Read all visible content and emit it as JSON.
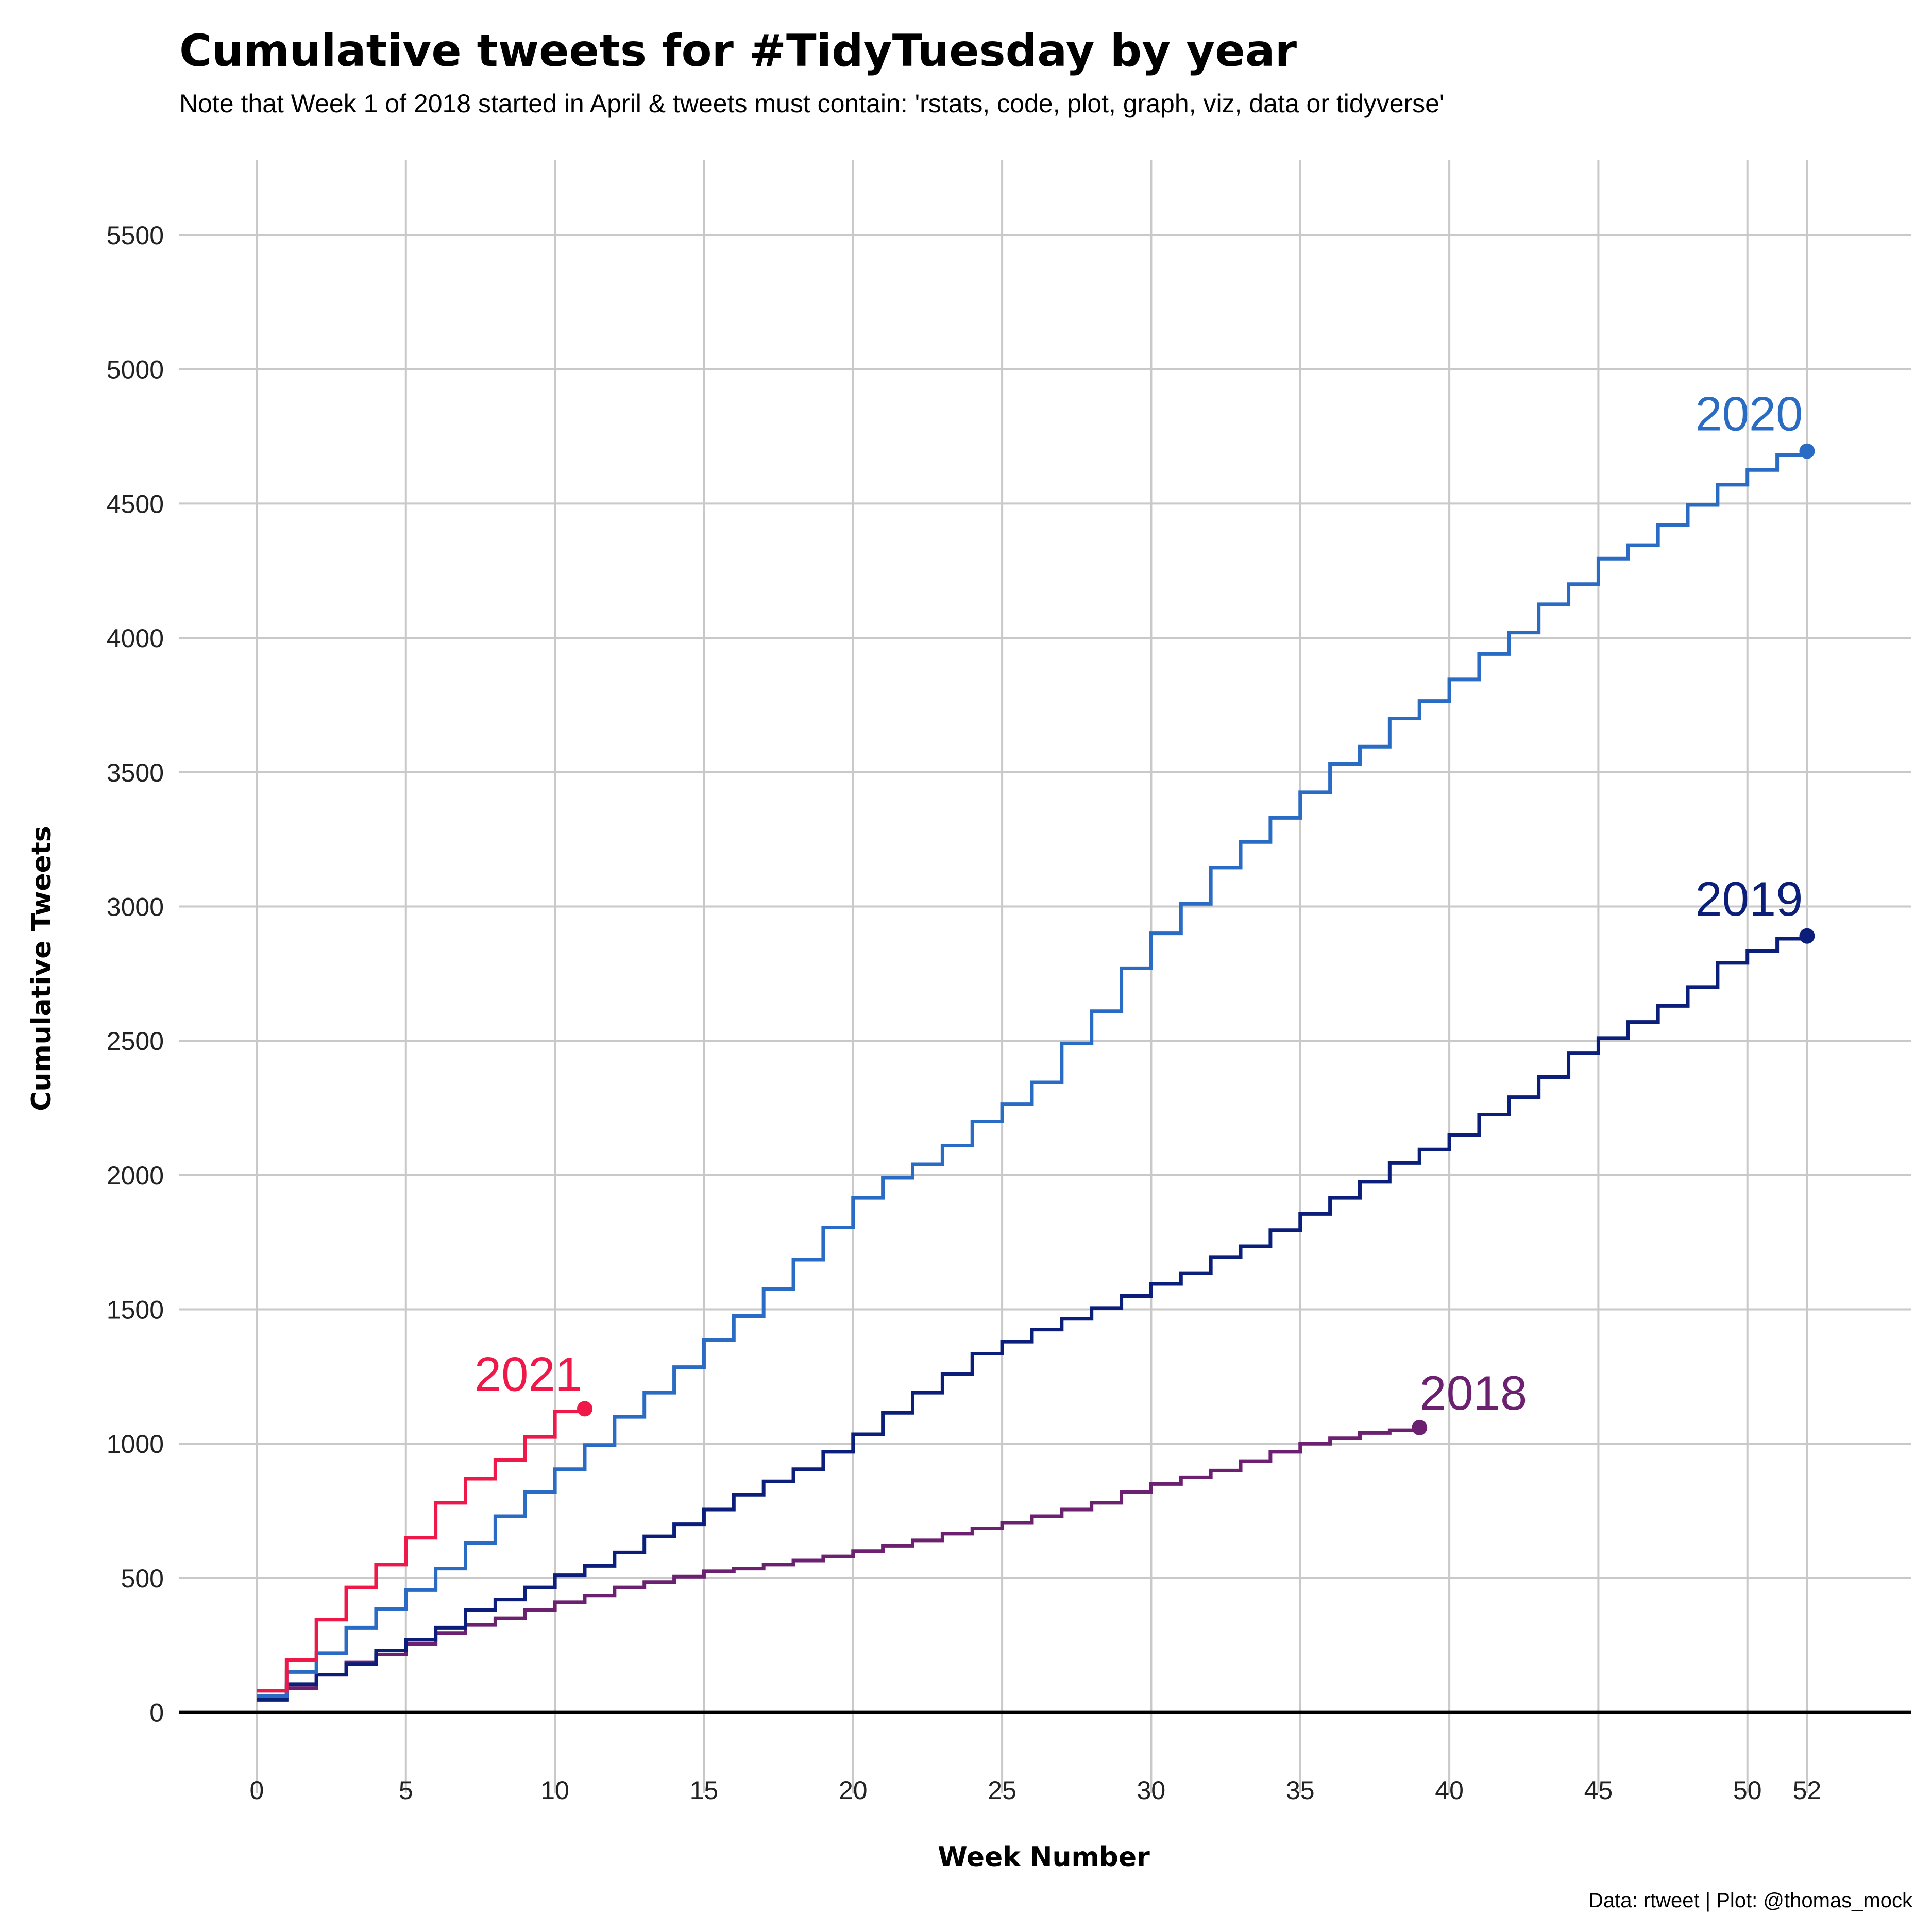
{
  "chart_data": {
    "type": "line",
    "step": true,
    "title": "Cumulative tweets for #TidyTuesday by year",
    "subtitle": "Note that Week 1 of 2018 started in April & tweets must contain: 'rstats, code, plot, graph, viz, data or tidyverse'",
    "xlabel": "Week Number",
    "ylabel": "Cumulative Tweets",
    "caption": "Data: rtweet | Plot: @thomas_mock",
    "xlim": [
      -2.6,
      55.5
    ],
    "ylim": [
      -300,
      5780
    ],
    "x_ticks": [
      0,
      5,
      10,
      15,
      20,
      25,
      30,
      35,
      40,
      45,
      50,
      52
    ],
    "y_ticks": [
      0,
      500,
      1000,
      1500,
      2000,
      2500,
      3000,
      3500,
      4000,
      4500,
      5000,
      5500
    ],
    "grid": true,
    "legend": "none (direct end labels)",
    "series": [
      {
        "name": "2018",
        "color": "#6b2170",
        "end_label": "2018",
        "x": [
          0,
          1,
          2,
          3,
          4,
          5,
          6,
          7,
          8,
          9,
          10,
          11,
          12,
          13,
          14,
          15,
          16,
          17,
          18,
          19,
          20,
          21,
          22,
          23,
          24,
          25,
          26,
          27,
          28,
          29,
          30,
          31,
          32,
          33,
          34,
          35,
          36,
          37,
          38,
          39
        ],
        "values": [
          45,
          90,
          140,
          185,
          215,
          255,
          295,
          325,
          350,
          380,
          410,
          435,
          465,
          485,
          505,
          525,
          535,
          550,
          565,
          580,
          600,
          620,
          640,
          665,
          685,
          705,
          730,
          755,
          780,
          820,
          850,
          875,
          900,
          935,
          970,
          1000,
          1020,
          1040,
          1050,
          1060
        ]
      },
      {
        "name": "2019",
        "color": "#0b1f7a",
        "end_label": "2019",
        "x": [
          0,
          1,
          2,
          3,
          4,
          5,
          6,
          7,
          8,
          9,
          10,
          11,
          12,
          13,
          14,
          15,
          16,
          17,
          18,
          19,
          20,
          21,
          22,
          23,
          24,
          25,
          26,
          27,
          28,
          29,
          30,
          31,
          32,
          33,
          34,
          35,
          36,
          37,
          38,
          39,
          40,
          41,
          42,
          43,
          44,
          45,
          46,
          47,
          48,
          49,
          50,
          51,
          52
        ],
        "values": [
          50,
          105,
          140,
          180,
          230,
          270,
          315,
          380,
          420,
          465,
          510,
          545,
          595,
          655,
          700,
          755,
          810,
          860,
          905,
          970,
          1035,
          1115,
          1190,
          1260,
          1335,
          1380,
          1425,
          1465,
          1505,
          1550,
          1595,
          1635,
          1695,
          1735,
          1795,
          1855,
          1915,
          1975,
          2045,
          2095,
          2150,
          2225,
          2290,
          2365,
          2455,
          2510,
          2570,
          2630,
          2700,
          2790,
          2835,
          2880,
          2890
        ]
      },
      {
        "name": "2020",
        "color": "#2a6bc4",
        "end_label": "2020",
        "x": [
          0,
          1,
          2,
          3,
          4,
          5,
          6,
          7,
          8,
          9,
          10,
          11,
          12,
          13,
          14,
          15,
          16,
          17,
          18,
          19,
          20,
          21,
          22,
          23,
          24,
          25,
          26,
          27,
          28,
          29,
          30,
          31,
          32,
          33,
          34,
          35,
          36,
          37,
          38,
          39,
          40,
          41,
          42,
          43,
          44,
          45,
          46,
          47,
          48,
          49,
          50,
          51,
          52
        ],
        "values": [
          60,
          150,
          220,
          315,
          385,
          455,
          535,
          630,
          730,
          820,
          905,
          995,
          1100,
          1190,
          1285,
          1385,
          1475,
          1575,
          1685,
          1805,
          1915,
          1990,
          2040,
          2110,
          2200,
          2265,
          2345,
          2490,
          2610,
          2770,
          2900,
          3010,
          3145,
          3240,
          3330,
          3425,
          3530,
          3595,
          3700,
          3765,
          3845,
          3940,
          4020,
          4125,
          4200,
          4295,
          4345,
          4420,
          4495,
          4570,
          4625,
          4680,
          4695
        ]
      },
      {
        "name": "2021",
        "color": "#ee1849",
        "end_label": "2021",
        "x": [
          0,
          1,
          2,
          3,
          4,
          5,
          6,
          7,
          8,
          9,
          10,
          11
        ],
        "values": [
          80,
          195,
          345,
          465,
          550,
          650,
          780,
          870,
          940,
          1025,
          1120,
          1130
        ]
      }
    ]
  }
}
